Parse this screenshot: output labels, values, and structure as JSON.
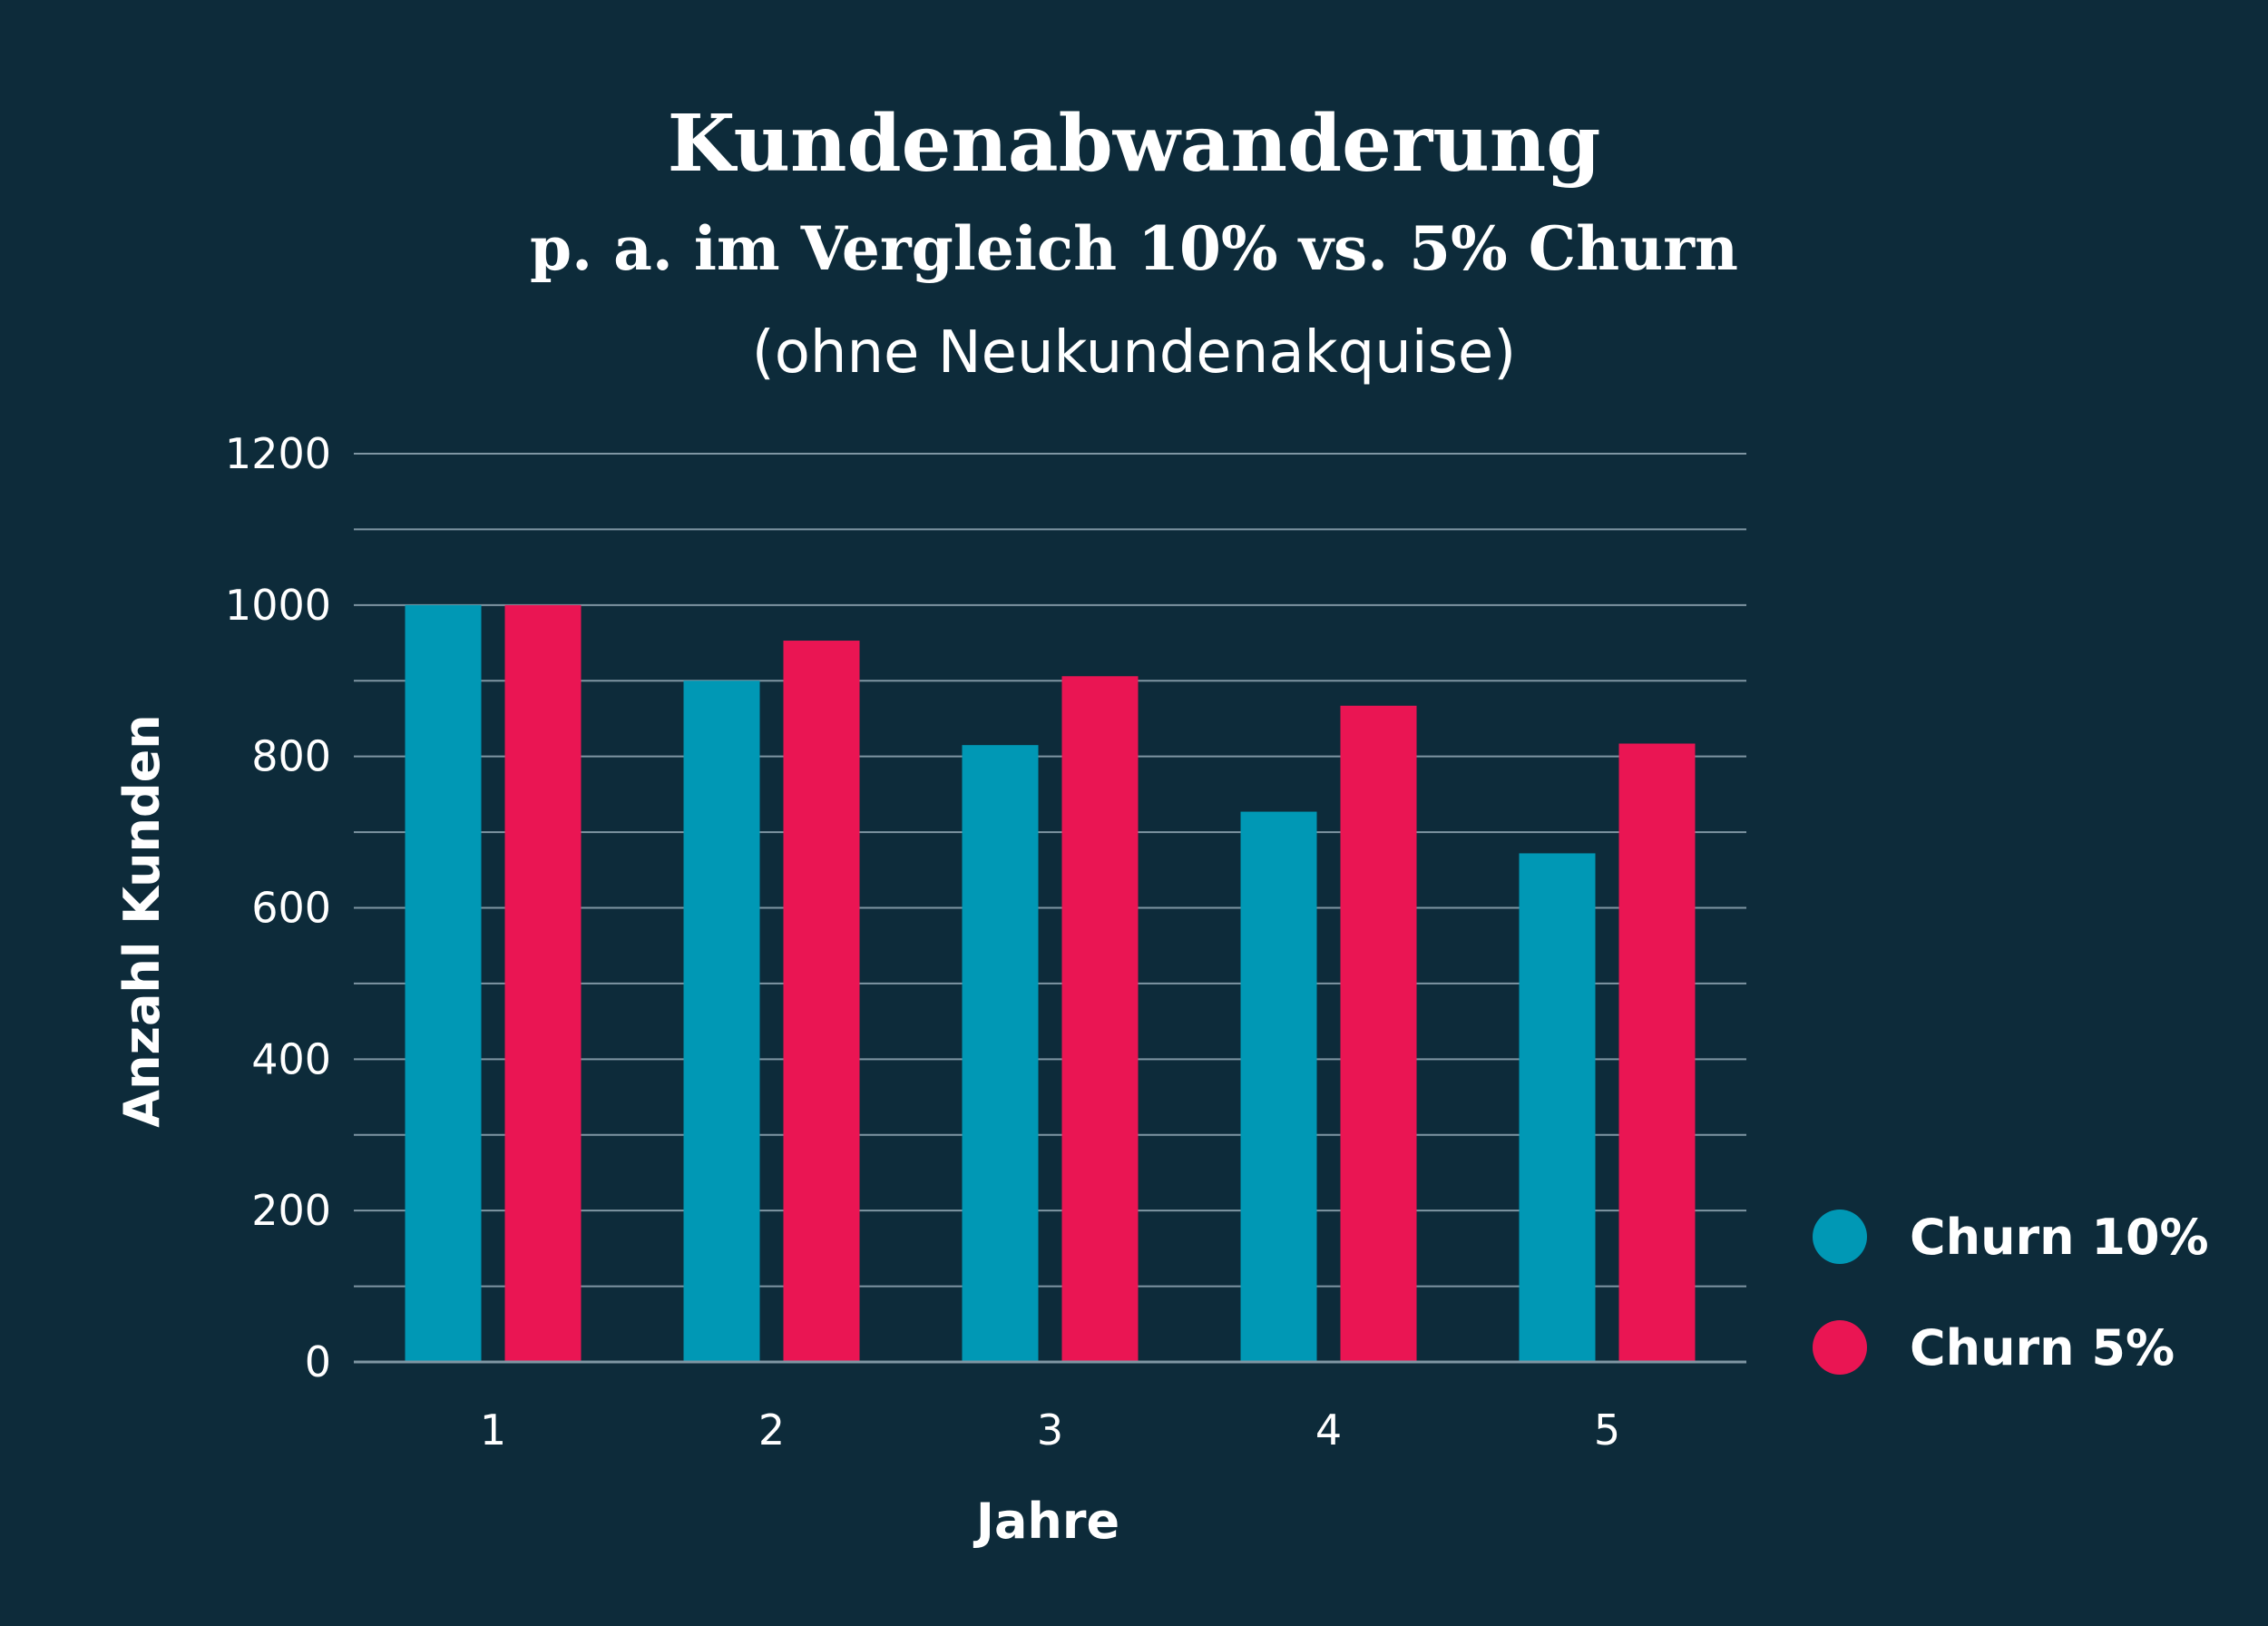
{
  "chart_data": {
    "type": "bar",
    "title": "Kundenabwanderung",
    "subtitle": "p. a. im Vergleich 10% vs. 5% Churn",
    "note": "(ohne Neukundenakquise)",
    "xlabel": "Jahre",
    "ylabel": "Anzahl Kunden",
    "categories": [
      "1",
      "2",
      "3",
      "4",
      "5"
    ],
    "ylim": [
      0,
      1200
    ],
    "yticks": [
      "0",
      "200",
      "400",
      "600",
      "800",
      "1000",
      "1200"
    ],
    "grid": true,
    "legend_position": "right",
    "series": [
      {
        "name": "Churn 10%",
        "color": "#0098b5",
        "values": [
          1000,
          900,
          815,
          727,
          672
        ]
      },
      {
        "name": "Churn 5%",
        "color": "#ea1553",
        "values": [
          1000,
          953,
          906,
          867,
          817
        ]
      }
    ]
  },
  "colors": {
    "background": "#0d2b3a",
    "grid": "#7f96a3",
    "text": "#ffffff"
  }
}
